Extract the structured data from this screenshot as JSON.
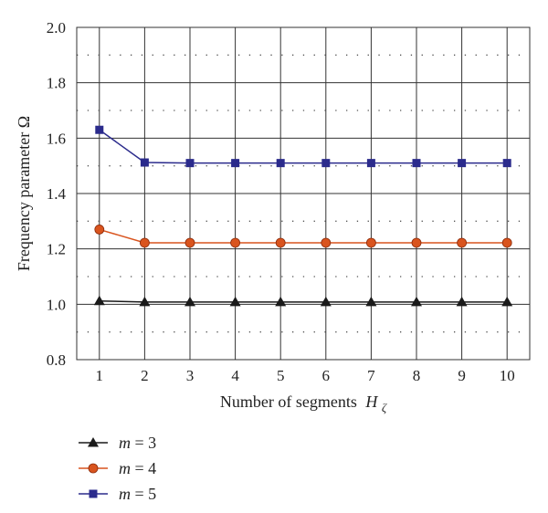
{
  "chart_data": {
    "type": "line",
    "x": [
      1,
      2,
      3,
      4,
      5,
      6,
      7,
      8,
      9,
      10
    ],
    "xlim": [
      0.5,
      10.5
    ],
    "ylim": [
      0.8,
      2.0
    ],
    "x_ticks": [
      "1",
      "2",
      "3",
      "4",
      "5",
      "6",
      "7",
      "8",
      "9",
      "10"
    ],
    "y_ticks": [
      "0.8",
      "1.0",
      "1.2",
      "1.4",
      "1.6",
      "1.8",
      "2.0"
    ],
    "xlabel": "Number of segments",
    "xlabel_symbol": "H",
    "xlabel_subscript": "ζ",
    "ylabel": "Frequency parameter Ω",
    "grid": true,
    "legend_position": "bottom-left, below plot",
    "series": [
      {
        "name": "m = 3",
        "name_var": "m",
        "name_rest": " = 3",
        "marker": "triangle",
        "line_color": "#1a1a1a",
        "marker_color": "#1a1a1a",
        "values": [
          1.012,
          1.008,
          1.008,
          1.008,
          1.008,
          1.008,
          1.008,
          1.008,
          1.008,
          1.008
        ]
      },
      {
        "name": "m = 4",
        "name_var": "m",
        "name_rest": " = 4",
        "marker": "circle",
        "line_color": "#d9541e",
        "marker_color": "#d9541e",
        "values": [
          1.27,
          1.222,
          1.222,
          1.222,
          1.222,
          1.222,
          1.222,
          1.222,
          1.222,
          1.222
        ]
      },
      {
        "name": "m = 5",
        "name_var": "m",
        "name_rest": " = 5",
        "marker": "square",
        "line_color": "#2b2b8c",
        "marker_color": "#2b2b8c",
        "values": [
          1.63,
          1.512,
          1.51,
          1.51,
          1.51,
          1.51,
          1.51,
          1.51,
          1.51,
          1.51
        ]
      }
    ]
  }
}
